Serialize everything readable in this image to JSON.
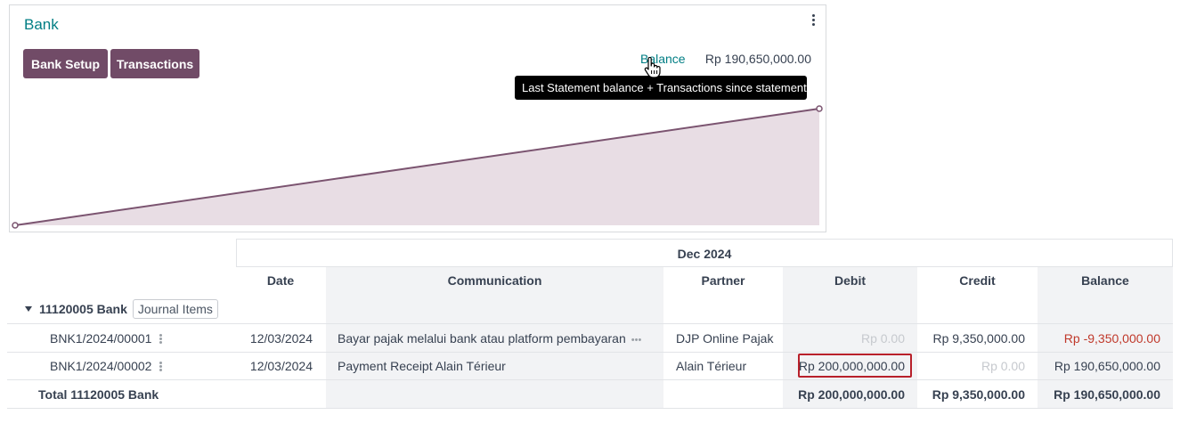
{
  "card": {
    "title": "Bank",
    "buttons": {
      "bank_setup": "Bank Setup",
      "transactions": "Transactions"
    },
    "balance_label": "Balance",
    "balance_value": "Rp 190,650,000.00",
    "tooltip": "Last Statement balance + Transactions since statement",
    "accent_color": "#714b67"
  },
  "chart_data": {
    "type": "area",
    "title": "",
    "xlabel": "",
    "ylabel": "",
    "series": [
      {
        "values": [
          0,
          190650000
        ]
      }
    ]
  },
  "table": {
    "period": "Dec 2024",
    "columns": [
      "Date",
      "Communication",
      "Partner",
      "Debit",
      "Credit",
      "Balance"
    ],
    "group": {
      "label": "11120005 Bank",
      "badge": "Journal Items"
    },
    "rows": [
      {
        "ref": "BNK1/2024/00001",
        "date": "12/03/2024",
        "communication": "Bayar pajak melalui bank atau platform pembayaran",
        "partner": "DJP Online Pajak",
        "debit": "Rp 0.00",
        "credit": "Rp 9,350,000.00",
        "balance": "Rp -9,350,000.00"
      },
      {
        "ref": "BNK1/2024/00002",
        "date": "12/03/2024",
        "communication": "Payment Receipt Alain Térieur",
        "partner": "Alain Térieur",
        "debit": "Rp 200,000,000.00",
        "credit": "Rp 0.00",
        "balance": "Rp 190,650,000.00"
      }
    ],
    "total": {
      "label": "Total 11120005 Bank",
      "debit": "Rp 200,000,000.00",
      "credit": "Rp 9,350,000.00",
      "balance": "Rp 190,650,000.00"
    }
  }
}
